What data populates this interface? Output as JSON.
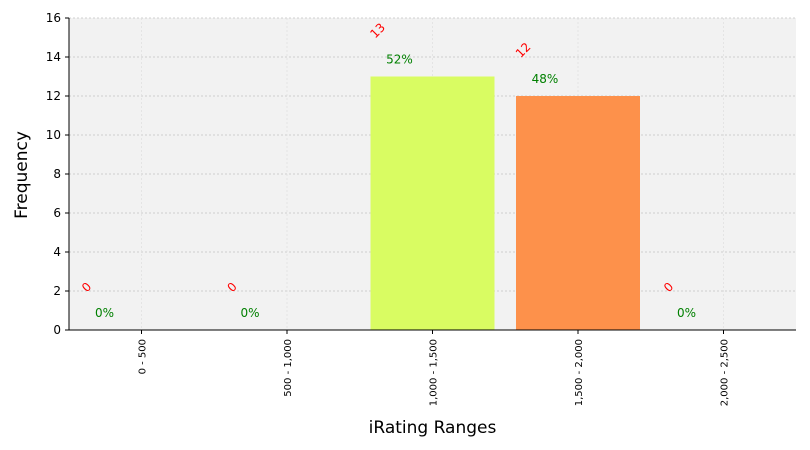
{
  "chart_data": {
    "type": "bar",
    "xlabel": "iRating Ranges",
    "ylabel": "Frequency",
    "categories": [
      "0 - 500",
      "500 - 1,000",
      "1,000 - 1,500",
      "1,500 - 2,000",
      "2,000 - 2,500"
    ],
    "values": [
      0,
      0,
      13,
      12,
      0
    ],
    "count_labels": [
      "0",
      "0",
      "13",
      "12",
      "0"
    ],
    "percent_labels": [
      "0%",
      "0%",
      "52%",
      "48%",
      "0%"
    ],
    "bar_colors": [
      "#d9fc62",
      "#d9fc62",
      "#d9fc62",
      "#fd914b",
      "#fd914b"
    ],
    "ylim": [
      0,
      16
    ],
    "yticks": [
      0,
      2,
      4,
      6,
      8,
      10,
      12,
      14,
      16
    ],
    "grid": true,
    "colors": {
      "plot_background": "#f2f2f2",
      "count_label": "#ff0000",
      "percent_label": "#008000"
    }
  }
}
